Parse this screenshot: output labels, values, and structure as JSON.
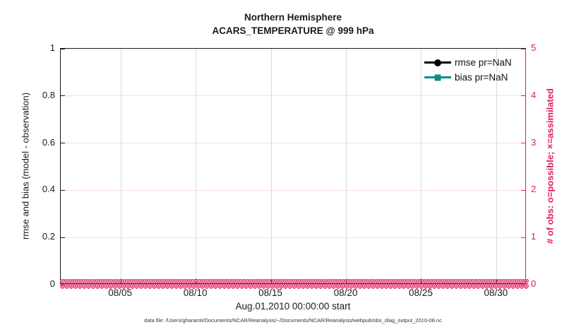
{
  "colors": {
    "pink": "#de1d64",
    "pink_grid": "#f8dbe7",
    "gray_grid": "#dcdcdc",
    "axis": "#1a1a1a",
    "teal": "#0d8e8e",
    "black": "#000000"
  },
  "footer": {
    "text": "data file: /Users/gharamti/Documents/NCAR/Reanalysis/~/Documents/NCAR/Reanalysis/webpub/obs_diag_output_2010-08.nc"
  },
  "chart_data": {
    "type": "line",
    "title": "Northern Hemisphere",
    "subtitle": "ACARS_TEMPERATURE @ 999 hPa",
    "xlabel": "Aug.01,2010 00:00:00 start",
    "ylabel": "rmse and bias (model - observation)",
    "ylabel_right": "# of obs: o=possible; ×=assimilated",
    "ylim": [
      0,
      1
    ],
    "yticks": [
      0,
      0.2,
      0.4,
      0.6,
      0.8,
      1
    ],
    "ylim_right": [
      0,
      5
    ],
    "yticks_right": [
      0,
      1,
      2,
      3,
      4,
      5
    ],
    "x_range_days": [
      0,
      31
    ],
    "xticks": [
      {
        "day": 4,
        "label": "08/05"
      },
      {
        "day": 9,
        "label": "08/10"
      },
      {
        "day": 14,
        "label": "08/15"
      },
      {
        "day": 19,
        "label": "08/20"
      },
      {
        "day": 24,
        "label": "08/25"
      },
      {
        "day": 29,
        "label": "08/30"
      }
    ],
    "grid": true,
    "legend_position": "top-right-inside",
    "legend_box": false,
    "series": [
      {
        "name": "rmse pr=NaN",
        "color": "#000000",
        "marker": "circle",
        "values": []
      },
      {
        "name": "bias pr=NaN",
        "color": "#0d8e8e",
        "marker": "square",
        "values": []
      }
    ],
    "obs_counts": {
      "plotted_on": "right-axis",
      "value": 0,
      "possible_marker": "o",
      "assimilated_marker": "x",
      "glyph": "⊗",
      "glyph_repeat": 420,
      "note": "dense band of overlapping pink o and x markers at y=0 spanning the whole month"
    }
  }
}
